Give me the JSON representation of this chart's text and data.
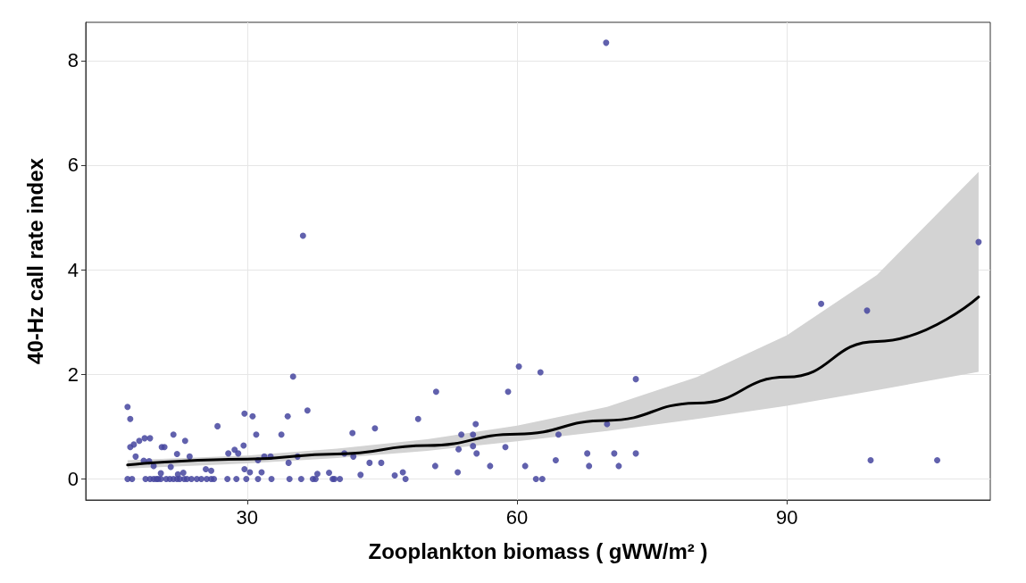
{
  "chart_data": {
    "type": "scatter",
    "xlabel": "Zooplankton biomass ( gWW/m² )",
    "ylabel": "40-Hz call rate index",
    "xlim": [
      12.05,
      112.6
    ],
    "ylim": [
      -0.4,
      8.73
    ],
    "xticks": [
      30,
      60,
      90
    ],
    "yticks": [
      0,
      2,
      4,
      6,
      8
    ],
    "grid": true,
    "series": [
      {
        "marker": "circle",
        "color": "#45459f",
        "x": [
          69.9,
          36.2,
          111.3,
          93.8,
          98.9,
          99.3,
          106.7,
          60.2,
          62.6,
          73.2,
          35.1,
          51.0,
          59.0,
          49.0,
          16.7,
          17.0,
          29.7,
          30.6,
          36.7,
          34.5,
          26.7,
          44.2,
          41.7,
          55.4,
          53.8,
          55.1,
          64.6,
          70.0,
          33.8,
          31.0,
          21.8,
          23.1,
          19.2,
          18.6,
          18.0,
          17.4,
          17.0,
          20.5,
          20.8,
          28.6,
          27.9,
          29.0,
          29.6,
          23.6,
          22.2,
          17.6,
          18.5,
          19.1,
          19.6,
          20.4,
          21.5,
          22.3,
          22.9,
          25.4,
          26.0,
          31.2,
          31.9,
          32.6,
          34.6,
          35.6,
          40.8,
          41.8,
          43.6,
          44.9,
          29.7,
          30.3,
          31.6,
          37.8,
          39.1,
          42.6,
          46.4,
          47.3,
          50.9,
          53.4,
          53.5,
          55.1,
          55.5,
          57.0,
          58.7,
          60.9,
          64.3,
          67.8,
          68.0,
          70.8,
          71.3,
          73.2,
          16.7,
          17.2,
          18.7,
          19.2,
          19.6,
          19.9,
          20.1,
          20.4,
          21.0,
          21.4,
          21.8,
          22.2,
          22.5,
          23.0,
          23.3,
          23.8,
          24.4,
          24.9,
          25.5,
          26.0,
          26.3,
          27.8,
          28.8,
          29.9,
          31.2,
          32.7,
          34.7,
          36.0,
          37.3,
          37.6,
          39.5,
          39.7,
          40.3,
          47.6,
          62.1,
          62.8
        ],
        "values": [
          8.34,
          4.65,
          4.53,
          3.35,
          3.22,
          0.36,
          0.36,
          2.15,
          2.04,
          1.91,
          1.96,
          1.67,
          1.67,
          1.15,
          1.38,
          1.15,
          1.25,
          1.2,
          1.31,
          1.2,
          1.01,
          0.97,
          0.88,
          1.05,
          0.85,
          0.85,
          0.85,
          1.05,
          0.85,
          0.85,
          0.85,
          0.73,
          0.78,
          0.78,
          0.73,
          0.66,
          0.61,
          0.61,
          0.61,
          0.56,
          0.49,
          0.49,
          0.64,
          0.43,
          0.48,
          0.43,
          0.35,
          0.34,
          0.25,
          0.11,
          0.23,
          0.09,
          0.12,
          0.19,
          0.16,
          0.36,
          0.43,
          0.43,
          0.31,
          0.43,
          0.49,
          0.43,
          0.31,
          0.31,
          0.19,
          0.13,
          0.13,
          0.1,
          0.12,
          0.08,
          0.07,
          0.13,
          0.25,
          0.13,
          0.57,
          0.63,
          0.49,
          0.25,
          0.61,
          0.25,
          0.36,
          0.49,
          0.25,
          0.49,
          0.25,
          0.49,
          0,
          0,
          0,
          0,
          0,
          0,
          0,
          0,
          0,
          0,
          0,
          0,
          0,
          0,
          0,
          0,
          0,
          0,
          0,
          0,
          0,
          0,
          0,
          0,
          0,
          0,
          0,
          0,
          0,
          0,
          0,
          0,
          0,
          0,
          0,
          0
        ]
      },
      {
        "type": "line",
        "color": "#000000",
        "line_style": "solid",
        "x": [
          16.7,
          30,
          40,
          50,
          60,
          70,
          80,
          90,
          100,
          111.3
        ],
        "values": [
          0.27,
          0.38,
          0.48,
          0.64,
          0.86,
          1.12,
          1.45,
          1.95,
          2.63,
          3.48
        ],
        "lower": [
          0.2,
          0.3,
          0.4,
          0.54,
          0.72,
          0.92,
          1.15,
          1.4,
          1.7,
          2.05
        ],
        "upper": [
          0.36,
          0.45,
          0.58,
          0.76,
          1.02,
          1.38,
          1.95,
          2.75,
          3.9,
          5.87
        ]
      }
    ]
  }
}
